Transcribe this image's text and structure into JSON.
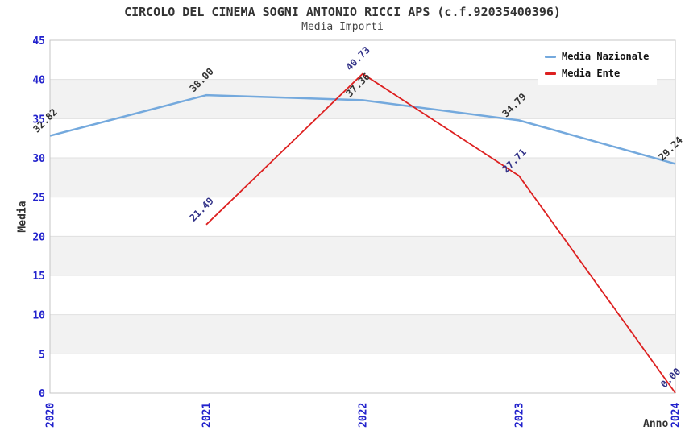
{
  "title": "CIRCOLO DEL CINEMA SOGNI ANTONIO RICCI APS (c.f.92035400396)",
  "subtitle": "Media Importi",
  "chart_data": {
    "type": "line",
    "x": [
      "2020",
      "2021",
      "2022",
      "2023",
      "2024"
    ],
    "series": [
      {
        "name": "Media Nazionale",
        "color": "#74a9dd",
        "line_width": 2.5,
        "label_color": "#333333",
        "values": [
          32.82,
          38.0,
          37.36,
          34.79,
          29.24
        ]
      },
      {
        "name": "Media Ente",
        "color": "#dd2020",
        "line_width": 1.8,
        "label_color": "#333388",
        "values": [
          null,
          21.49,
          40.73,
          27.71,
          0.0
        ]
      }
    ],
    "xlabel": "Anno",
    "ylabel": "Media",
    "ylim": [
      0,
      45
    ],
    "ytick_step": 5,
    "yticks": [
      0,
      5,
      10,
      15,
      20,
      25,
      30,
      35,
      40,
      45
    ],
    "grid": "horizontal-bands",
    "band_colors": [
      "#ffffff",
      "#f2f2f2"
    ],
    "gridline_color": "#e0e0e0",
    "border_color": "#c4c4c4",
    "tick_color": "#2222cc",
    "legend_position": "top-right",
    "data_label_rotation": -45,
    "x_tick_rotation": -90
  }
}
